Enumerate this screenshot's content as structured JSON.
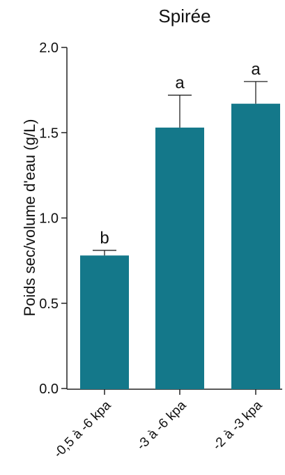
{
  "chart_data": {
    "type": "bar",
    "title": "Spirée",
    "xlabel": "",
    "ylabel": "Poids sec/volume d'eau (g/L)",
    "ylim": [
      0,
      2.0
    ],
    "yticks": [
      0.0,
      0.5,
      1.0,
      1.5,
      2.0
    ],
    "ytick_labels": [
      "0.0",
      "0.5",
      "1.0",
      "1.5",
      "2.0"
    ],
    "categories": [
      "-0,5 à -6 kpa",
      "-3 à -6 kpa",
      "-2 à -3 kpa"
    ],
    "values": [
      0.78,
      1.53,
      1.67
    ],
    "error_upper": [
      0.81,
      1.72,
      1.8
    ],
    "significance_labels": [
      "b",
      "a",
      "a"
    ],
    "grid": false,
    "colors": {
      "bar": "#14788a",
      "axis": "#222222"
    }
  }
}
